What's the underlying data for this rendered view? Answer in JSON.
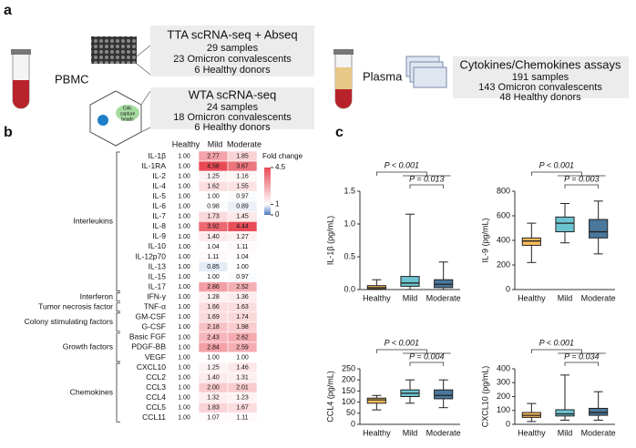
{
  "panel_a": {
    "label": "a",
    "pbmc": "PBMC",
    "tta": {
      "title": "TTA scRNA-seq + Abseq",
      "lines": [
        "29 samples",
        "23 Omicron convalescents",
        "6 Healthy donors"
      ]
    },
    "wta": {
      "title": "WTA scRNA-seq",
      "lines": [
        "24 samples",
        "18 Omicron convalescents",
        "6 Healthy donors"
      ]
    },
    "beads": [
      "Cell-",
      "capture",
      "beads"
    ],
    "plasma": "Plasma",
    "assay": {
      "title": "Cytokines/Chemokines assays",
      "lines": [
        "191 samples",
        "143 Omicron convalescents",
        "48 Healthy donors"
      ]
    }
  },
  "chart_data": [
    {
      "type": "heatmap",
      "label": "b",
      "columns": [
        "Healthy",
        "Mild",
        "Moderate"
      ],
      "colorbar": {
        "title": "Fold change",
        "lim": [
          0,
          4.5
        ],
        "ticks": [
          4.5,
          1,
          0
        ],
        "colors": [
          "#4a78c2",
          "#ffffff",
          "#e84a55"
        ]
      },
      "groups": [
        {
          "name": "Interleukins",
          "rows": [
            {
              "name": "IL-1β",
              "values": [
                1,
                2.77,
                1.85
              ],
              "value_labels": [
                "1.00",
                "2.77",
                "1.85"
              ]
            },
            {
              "name": "IL-1RA",
              "values": [
                1,
                4.58,
                3.67
              ],
              "value_labels": [
                "1.00",
                "4.58",
                "3.67"
              ]
            },
            {
              "name": "IL-2",
              "values": [
                1,
                1.25,
                1.16
              ],
              "value_labels": [
                "1.00",
                "1.25",
                "1.16"
              ]
            },
            {
              "name": "IL-4",
              "values": [
                1,
                1.62,
                1.55
              ],
              "value_labels": [
                "1.00",
                "1.62",
                "1.55"
              ]
            },
            {
              "name": "IL-5",
              "values": [
                1,
                1,
                0.97
              ],
              "value_labels": [
                "1.00",
                "1.00",
                "0.97"
              ]
            },
            {
              "name": "IL-6",
              "values": [
                1,
                0.98,
                0.89
              ],
              "value_labels": [
                "1.00",
                "0.98",
                "0.89"
              ]
            },
            {
              "name": "IL-7",
              "values": [
                1,
                1.73,
                1.45
              ],
              "value_labels": [
                "1.00",
                "1.73",
                "1.45"
              ]
            },
            {
              "name": "IL-8",
              "values": [
                1,
                3.92,
                4.44
              ],
              "value_labels": [
                "1.00",
                "3.92",
                "4.44"
              ]
            },
            {
              "name": "IL-9",
              "values": [
                1,
                1.4,
                1.27
              ],
              "value_labels": [
                "1.00",
                "1.40",
                "1.27"
              ]
            },
            {
              "name": "IL-10",
              "values": [
                1,
                1.04,
                1.11
              ],
              "value_labels": [
                "1.00",
                "1.04",
                "1.11"
              ]
            },
            {
              "name": "IL-12p70",
              "values": [
                1,
                1.11,
                1.04
              ],
              "value_labels": [
                "1.00",
                "1.11",
                "1.04"
              ]
            },
            {
              "name": "IL-13",
              "values": [
                1,
                0.85,
                1
              ],
              "value_labels": [
                "1.00",
                "0.85",
                "1.00"
              ]
            },
            {
              "name": "IL-15",
              "values": [
                1,
                1,
                0.97
              ],
              "value_labels": [
                "1.00",
                "1.00",
                "0.97"
              ]
            },
            {
              "name": "IL-17",
              "values": [
                1,
                2.86,
                2.52
              ],
              "value_labels": [
                "1.00",
                "2.86",
                "2.52"
              ]
            }
          ]
        },
        {
          "name": "Interferon",
          "rows": [
            {
              "name": "IFN-γ",
              "values": [
                1,
                1.28,
                1.36
              ],
              "value_labels": [
                "1.00",
                "1.28",
                "1.36"
              ]
            }
          ]
        },
        {
          "name": "Tumor necrosis factor",
          "rows": [
            {
              "name": "TNF-α",
              "values": [
                1,
                1.66,
                1.63
              ],
              "value_labels": [
                "1.00",
                "1.66",
                "1.63"
              ]
            }
          ]
        },
        {
          "name": "Colony stimulating factors",
          "rows": [
            {
              "name": "GM-CSF",
              "values": [
                1,
                1.69,
                1.74
              ],
              "value_labels": [
                "1.00",
                "1.69",
                "1.74"
              ]
            },
            {
              "name": "G-CSF",
              "values": [
                1,
                2.18,
                1.98
              ],
              "value_labels": [
                "1.00",
                "2.18",
                "1.98"
              ]
            }
          ]
        },
        {
          "name": "Growth factors",
          "rows": [
            {
              "name": "Basic FGF",
              "values": [
                1,
                2.43,
                2.62
              ],
              "value_labels": [
                "1.00",
                "2.43",
                "2.62"
              ]
            },
            {
              "name": "PDGF-BB",
              "values": [
                1,
                2.84,
                2.59
              ],
              "value_labels": [
                "1.00",
                "2.84",
                "2.59"
              ]
            },
            {
              "name": "VEGF",
              "values": [
                1,
                1,
                1
              ],
              "value_labels": [
                "1.00",
                "1.00",
                "1.00"
              ]
            }
          ]
        },
        {
          "name": "Chemokines",
          "rows": [
            {
              "name": "CXCL10",
              "values": [
                1,
                1.25,
                1.46
              ],
              "value_labels": [
                "1.00",
                "1.25",
                "1.46"
              ]
            },
            {
              "name": "CCL2",
              "values": [
                1,
                1.4,
                1.31
              ],
              "value_labels": [
                "1.00",
                "1.40",
                "1.31"
              ]
            },
            {
              "name": "CCL3",
              "values": [
                1,
                2,
                2.01
              ],
              "value_labels": [
                "1.00",
                "2.00",
                "2.01"
              ]
            },
            {
              "name": "CCL4",
              "values": [
                1,
                1.32,
                1.23
              ],
              "value_labels": [
                "1.00",
                "1.32",
                "1.23"
              ]
            },
            {
              "name": "CCL5",
              "values": [
                1,
                1.83,
                1.67
              ],
              "value_labels": [
                "1.00",
                "1.83",
                "1.67"
              ]
            },
            {
              "name": "CCL11",
              "values": [
                1,
                1.07,
                1.11
              ],
              "value_labels": [
                "1.00",
                "1.07",
                "1.11"
              ]
            }
          ]
        }
      ]
    },
    {
      "type": "box",
      "label": "c",
      "ylabel": "IL-1β (pg/mL)",
      "categories": [
        "Healthy",
        "Mild",
        "Moderate"
      ],
      "colors": [
        "#f5a623",
        "#3bb0c0",
        "#0d4a7a"
      ],
      "boxes": [
        {
          "min": 0,
          "q1": 0.01,
          "median": 0.03,
          "q3": 0.06,
          "max": 0.15
        },
        {
          "min": 0,
          "q1": 0.05,
          "median": 0.1,
          "q3": 0.2,
          "max": 1.15
        },
        {
          "min": 0,
          "q1": 0.03,
          "median": 0.08,
          "q3": 0.15,
          "max": 0.42
        }
      ],
      "ylim": [
        0,
        1.5
      ],
      "yticks": [
        {
          "value": 0,
          "label": "0.0"
        },
        0.5,
        {
          "value": 1,
          "label": "1.0"
        },
        1.5
      ],
      "annotations": [
        "P < 0.001",
        "P = 0.013"
      ]
    },
    {
      "type": "box",
      "ylabel": "IL-9 (pg/mL)",
      "categories": [
        "Healthy",
        "Mild",
        "Moderate"
      ],
      "colors": [
        "#f5a623",
        "#3bb0c0",
        "#0d4a7a"
      ],
      "boxes": [
        {
          "min": 220,
          "q1": 360,
          "median": 395,
          "q3": 420,
          "max": 540
        },
        {
          "min": 380,
          "q1": 470,
          "median": 540,
          "q3": 590,
          "max": 700
        },
        {
          "min": 290,
          "q1": 420,
          "median": 470,
          "q3": 570,
          "max": 720
        }
      ],
      "ylim": [
        0,
        800
      ],
      "yticks": [
        0,
        200,
        400,
        600,
        800
      ],
      "annotations": [
        "P < 0.001",
        "P = 0.003"
      ]
    },
    {
      "type": "box",
      "ylabel": "CCL4 (pg/mL)",
      "categories": [
        "Healthy",
        "Mild",
        "Moderate"
      ],
      "colors": [
        "#f5a623",
        "#3bb0c0",
        "#0d4a7a"
      ],
      "boxes": [
        {
          "min": 65,
          "q1": 95,
          "median": 110,
          "q3": 118,
          "max": 130
        },
        {
          "min": 95,
          "q1": 125,
          "median": 140,
          "q3": 155,
          "max": 200
        },
        {
          "min": 75,
          "q1": 115,
          "median": 130,
          "q3": 155,
          "max": 200
        }
      ],
      "ylim": [
        0,
        250
      ],
      "yticks": [
        0,
        50,
        100,
        150,
        200,
        250
      ],
      "annotations": [
        "P < 0.001",
        "P = 0.004"
      ]
    },
    {
      "type": "box",
      "ylabel": "CXCL10 (pg/mL)",
      "categories": [
        "Healthy",
        "Mild",
        "Moderate"
      ],
      "colors": [
        "#f5a623",
        "#3bb0c0",
        "#0d4a7a"
      ],
      "boxes": [
        {
          "min": 20,
          "q1": 50,
          "median": 65,
          "q3": 85,
          "max": 150
        },
        {
          "min": 30,
          "q1": 60,
          "median": 75,
          "q3": 105,
          "max": 355
        },
        {
          "min": 30,
          "q1": 65,
          "median": 85,
          "q3": 115,
          "max": 235
        }
      ],
      "ylim": [
        0,
        400
      ],
      "yticks": [
        0,
        100,
        200,
        300,
        400
      ],
      "annotations": [
        "P < 0.001",
        "P = 0.034"
      ]
    }
  ]
}
